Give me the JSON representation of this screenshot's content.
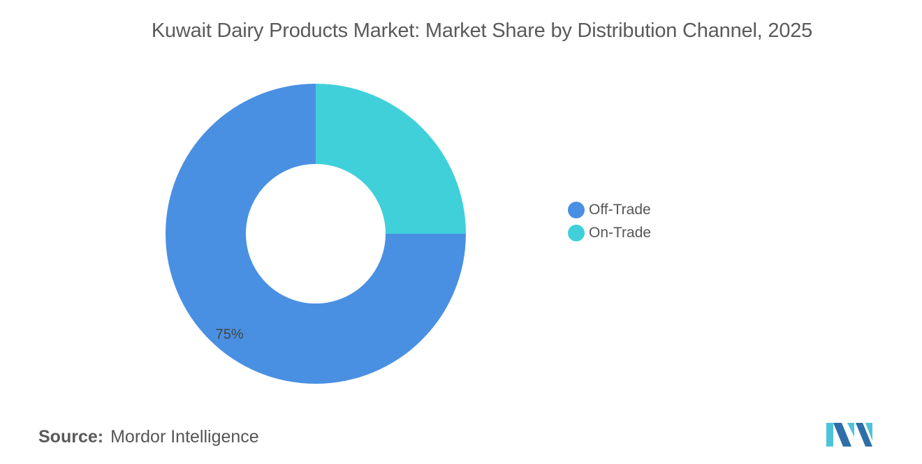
{
  "chart_data": {
    "type": "pie",
    "title": "Kuwait Dairy Products Market: Market Share by Distribution Channel, 2025",
    "donut": true,
    "categories": [
      "Off-Trade",
      "On-Trade"
    ],
    "values": [
      75,
      25
    ],
    "unit": "%",
    "data_labels": [
      "75%",
      ""
    ],
    "colors": [
      "#4a90e2",
      "#40d0da"
    ],
    "legend_position": "right"
  },
  "source": {
    "label": "Source:",
    "text": "Mordor Intelligence"
  },
  "brand": {
    "logo_icon": "mordor-intelligence-logo-icon",
    "colors": [
      "#2d6fa8",
      "#4fc3d9"
    ]
  }
}
